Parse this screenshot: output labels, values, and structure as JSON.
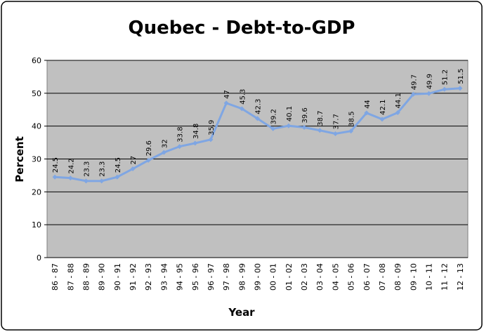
{
  "chart_data": {
    "type": "line",
    "title": "Quebec - Debt-to-GDP",
    "x_label": "Year",
    "y_label": "Percent",
    "categories": [
      "86 - 87",
      "87 - 88",
      "88 - 89",
      "89 - 90",
      "90 - 91",
      "91 - 92",
      "92 - 93",
      "93 - 94",
      "94 - 95",
      "95 - 96",
      "96 - 97",
      "97 - 98",
      "98 - 99",
      "99 - 00",
      "00 - 01",
      "01 - 02",
      "02 - 03",
      "03 - 04",
      "04 - 05",
      "05 - 06",
      "06 - 07",
      "07 - 08",
      "08 - 09",
      "09 - 10",
      "10 - 11",
      "11 - 12",
      "12 - 13"
    ],
    "values": [
      24.5,
      24.2,
      23.3,
      23.3,
      24.5,
      27,
      29.6,
      32,
      33.8,
      34.8,
      35.9,
      47,
      45.3,
      42.3,
      39.2,
      40.1,
      39.6,
      38.7,
      37.7,
      38.5,
      44,
      42.1,
      44.1,
      49.7,
      49.9,
      51.2,
      51.5
    ],
    "color": "#7fa6e3",
    "ylim": [
      0,
      60
    ],
    "yticks": [
      0,
      10,
      20,
      30,
      40,
      50,
      60
    ],
    "grid": true
  }
}
